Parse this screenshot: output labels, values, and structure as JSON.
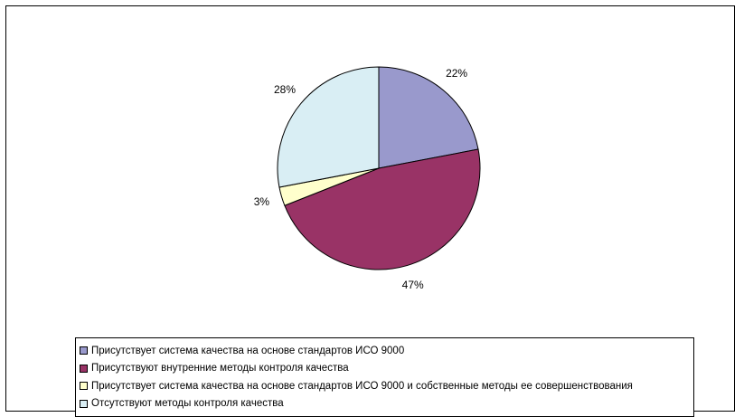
{
  "chart_data": {
    "type": "pie",
    "title": "",
    "values": [
      22,
      47,
      3,
      28
    ],
    "labels": [
      "22%",
      "47%",
      "3%",
      "28%"
    ],
    "categories": [
      "Присутствует система качества на основе стандартов ИСО 9000",
      "Присутствуют внутренние методы контроля качества",
      "Присутствует система качества на основе стандартов ИСО 9000 и собственные методы ее совершенствования",
      "Отсутствуют методы контроля качества"
    ],
    "colors": [
      "#9999cc",
      "#993366",
      "#ffffcc",
      "#d9eef4"
    ],
    "legend_position": "bottom",
    "start_angle": "12 o'clock",
    "direction": "clockwise"
  },
  "legend": {
    "items": [
      {
        "label": "Присутствует система качества на основе стандартов ИСО 9000",
        "color": "#9999cc"
      },
      {
        "label": "Присутствуют внутренние методы контроля качества",
        "color": "#993366"
      },
      {
        "label": "Присутствует система качества на основе стандартов ИСО 9000 и собственные методы ее совершенствования",
        "color": "#ffffcc"
      },
      {
        "label": "Отсутствуют методы контроля качества",
        "color": "#d9eef4"
      }
    ]
  }
}
